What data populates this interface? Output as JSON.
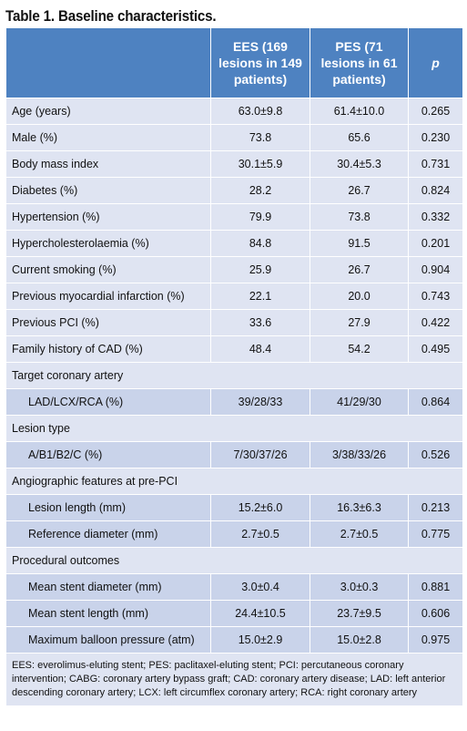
{
  "title": "Table 1. Baseline characteristics.",
  "headers": {
    "col1": "",
    "col2": "EES (169 lesions in 149 patients)",
    "col3": "PES (71 lesions in 61 patients)",
    "col4": "p"
  },
  "rows": [
    {
      "label": "Age (years)",
      "ees": "63.0±9.8",
      "pes": "61.4±10.0",
      "p": "0.265"
    },
    {
      "label": "Male (%)",
      "ees": "73.8",
      "pes": "65.6",
      "p": "0.230"
    },
    {
      "label": "Body mass index",
      "ees": "30.1±5.9",
      "pes": "30.4±5.3",
      "p": "0.731"
    },
    {
      "label": "Diabetes (%)",
      "ees": "28.2",
      "pes": "26.7",
      "p": "0.824"
    },
    {
      "label": "Hypertension (%)",
      "ees": "79.9",
      "pes": "73.8",
      "p": "0.332"
    },
    {
      "label": "Hypercholesterolaemia (%)",
      "ees": "84.8",
      "pes": "91.5",
      "p": "0.201"
    },
    {
      "label": "Current smoking (%)",
      "ees": "25.9",
      "pes": "26.7",
      "p": "0.904"
    },
    {
      "label": "Previous myocardial infarction (%)",
      "ees": "22.1",
      "pes": "20.0",
      "p": "0.743"
    },
    {
      "label": "Previous PCI (%)",
      "ees": "33.6",
      "pes": "27.9",
      "p": "0.422"
    },
    {
      "label": "Family history of CAD (%)",
      "ees": "48.4",
      "pes": "54.2",
      "p": "0.495"
    }
  ],
  "sections": {
    "target": {
      "title": "Target coronary artery",
      "rows": [
        {
          "label": "LAD/LCX/RCA (%)",
          "ees": "39/28/33",
          "pes": "41/29/30",
          "p": "0.864"
        }
      ]
    },
    "lesion": {
      "title": "Lesion type",
      "rows": [
        {
          "label": "A/B1/B2/C (%)",
          "ees": "7/30/37/26",
          "pes": "3/38/33/26",
          "p": "0.526"
        }
      ]
    },
    "angio": {
      "title": "Angiographic features at pre-PCI",
      "rows": [
        {
          "label": "Lesion length (mm)",
          "ees": "15.2±6.0",
          "pes": "16.3±6.3",
          "p": "0.213"
        },
        {
          "label": "Reference diameter (mm)",
          "ees": "2.7±0.5",
          "pes": "2.7±0.5",
          "p": "0.775"
        }
      ]
    },
    "proc": {
      "title": "Procedural outcomes",
      "rows": [
        {
          "label": "Mean stent diameter (mm)",
          "ees": "3.0±0.4",
          "pes": "3.0±0.3",
          "p": "0.881"
        },
        {
          "label": "Mean stent length (mm)",
          "ees": "24.4±10.5",
          "pes": "23.7±9.5",
          "p": "0.606"
        },
        {
          "label": "Maximum balloon pressure (atm)",
          "ees": "15.0±2.9",
          "pes": "15.0±2.8",
          "p": "0.975"
        }
      ]
    }
  },
  "footnote": "EES: everolimus-eluting stent; PES: paclitaxel-eluting stent; PCI: percutaneous coronary intervention; CABG: coronary artery bypass graft; CAD: coronary artery disease; LAD: left anterior descending coronary artery; LCX: left circumflex coronary artery; RCA: right coronary artery",
  "colors": {
    "header": "#4e82c1",
    "row_light": "#dfe4f2",
    "row_sub": "#c9d3ea"
  }
}
